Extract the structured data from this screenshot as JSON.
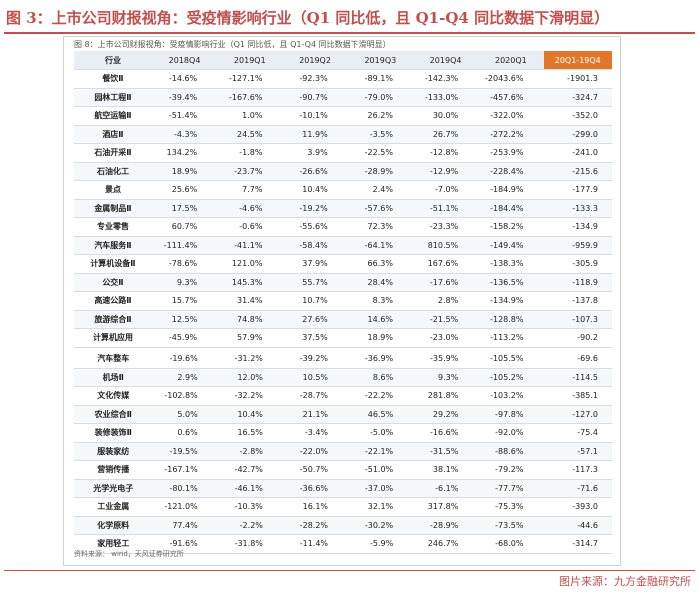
{
  "figure_title": "图 3：上市公司财报视角：受疫情影响行业（Q1 同比低，且 Q1-Q4 同比数据下滑明显）",
  "inner_caption": "图 8：上市公司财报视角：受疫情影响行业（Q1 同比低，且 Q1-Q4 同比数据下滑明显）",
  "source_note": "资料来源： wind，天风证券研究所",
  "footer": "图片来源：九方金融研究所",
  "colors": {
    "title": "#c0504d",
    "highlight_header": "#e2772b"
  },
  "table": {
    "headers": [
      "行业",
      "2018Q4",
      "2019Q1",
      "2019Q2",
      "2019Q3",
      "2019Q4",
      "2020Q1",
      "20Q1-19Q4"
    ],
    "group1": [
      [
        "餐饮Ⅱ",
        "-14.6%",
        "-127.1%",
        "-92.3%",
        "-89.1%",
        "-142.3%",
        "-2043.6%",
        "-1901.3"
      ],
      [
        "园林工程Ⅱ",
        "-39.4%",
        "-167.6%",
        "-90.7%",
        "-79.0%",
        "-133.0%",
        "-457.6%",
        "-324.7"
      ],
      [
        "航空运输Ⅱ",
        "-51.4%",
        "1.0%",
        "-10.1%",
        "26.2%",
        "30.0%",
        "-322.0%",
        "-352.0"
      ],
      [
        "酒店Ⅱ",
        "-4.3%",
        "24.5%",
        "11.9%",
        "-3.5%",
        "26.7%",
        "-272.2%",
        "-299.0"
      ],
      [
        "石油开采Ⅱ",
        "134.2%",
        "-1.8%",
        "3.9%",
        "-22.5%",
        "-12.8%",
        "-253.9%",
        "-241.0"
      ],
      [
        "石油化工",
        "18.9%",
        "-23.7%",
        "-26.6%",
        "-28.9%",
        "-12.9%",
        "-228.4%",
        "-215.6"
      ],
      [
        "景点",
        "25.6%",
        "7.7%",
        "10.4%",
        "2.4%",
        "-7.0%",
        "-184.9%",
        "-177.9"
      ],
      [
        "金属制品Ⅱ",
        "17.5%",
        "-4.6%",
        "-19.2%",
        "-57.6%",
        "-51.1%",
        "-184.4%",
        "-133.3"
      ],
      [
        "专业零售",
        "60.7%",
        "-0.6%",
        "-55.6%",
        "72.3%",
        "-23.3%",
        "-158.2%",
        "-134.9"
      ],
      [
        "汽车服务Ⅱ",
        "-111.4%",
        "-41.1%",
        "-58.4%",
        "-64.1%",
        "810.5%",
        "-149.4%",
        "-959.9"
      ],
      [
        "计算机设备Ⅱ",
        "-78.6%",
        "121.0%",
        "37.9%",
        "66.3%",
        "167.6%",
        "-138.3%",
        "-305.9"
      ],
      [
        "公交Ⅱ",
        "9.3%",
        "145.3%",
        "55.7%",
        "28.4%",
        "-17.6%",
        "-136.5%",
        "-118.9"
      ],
      [
        "高速公路Ⅱ",
        "15.7%",
        "31.4%",
        "10.7%",
        "8.3%",
        "2.8%",
        "-134.9%",
        "-137.8"
      ],
      [
        "旅游综合Ⅱ",
        "12.5%",
        "74.8%",
        "27.6%",
        "14.6%",
        "-21.5%",
        "-128.8%",
        "-107.3"
      ],
      [
        "计算机应用",
        "-45.9%",
        "57.9%",
        "37.5%",
        "18.9%",
        "-23.0%",
        "-113.2%",
        "-90.2"
      ]
    ],
    "group2": [
      [
        "汽车整车",
        "-19.6%",
        "-31.2%",
        "-39.2%",
        "-36.9%",
        "-35.9%",
        "-105.5%",
        "-69.6"
      ],
      [
        "机场Ⅱ",
        "2.9%",
        "12.0%",
        "10.5%",
        "8.6%",
        "9.3%",
        "-105.2%",
        "-114.5"
      ],
      [
        "文化传媒",
        "-102.8%",
        "-32.2%",
        "-28.7%",
        "-22.2%",
        "281.8%",
        "-103.2%",
        "-385.1"
      ],
      [
        "农业综合Ⅱ",
        "5.0%",
        "10.4%",
        "21.1%",
        "46.5%",
        "29.2%",
        "-97.8%",
        "-127.0"
      ],
      [
        "装修装饰Ⅱ",
        "0.6%",
        "16.5%",
        "-3.4%",
        "-5.0%",
        "-16.6%",
        "-92.0%",
        "-75.4"
      ],
      [
        "服装家纺",
        "-19.5%",
        "-2.8%",
        "-22.0%",
        "-22.1%",
        "-31.5%",
        "-88.6%",
        "-57.1"
      ],
      [
        "营销传播",
        "-167.1%",
        "-42.7%",
        "-50.7%",
        "-51.0%",
        "38.1%",
        "-79.2%",
        "-117.3"
      ],
      [
        "光学光电子",
        "-80.1%",
        "-46.1%",
        "-36.6%",
        "-37.0%",
        "-6.1%",
        "-77.7%",
        "-71.6"
      ],
      [
        "工业金属",
        "-121.0%",
        "-10.3%",
        "16.1%",
        "32.1%",
        "317.8%",
        "-75.3%",
        "-393.0"
      ],
      [
        "化学原料",
        "77.4%",
        "-2.2%",
        "-28.2%",
        "-30.2%",
        "-28.9%",
        "-73.5%",
        "-44.6"
      ],
      [
        "家用轻工",
        "-91.6%",
        "-31.8%",
        "-11.4%",
        "-5.9%",
        "246.7%",
        "-68.0%",
        "-314.7"
      ]
    ]
  }
}
